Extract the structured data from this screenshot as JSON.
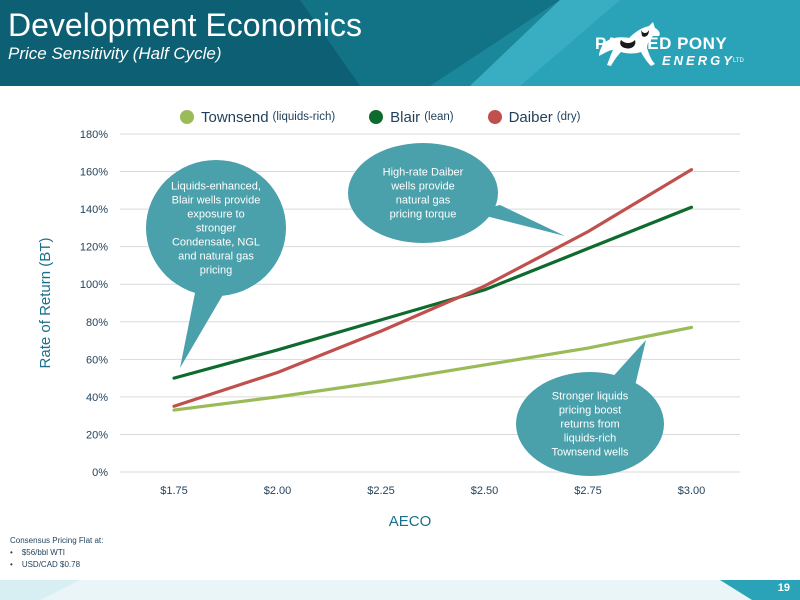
{
  "header": {
    "title": "Development Economics",
    "subtitle": "Price Sensitivity (Half Cycle)"
  },
  "logo": {
    "line1": "PAINTED PONY",
    "line2": "ENERGY",
    "suffix": "LTD",
    "icon": "horse-icon"
  },
  "colors": {
    "header_teal": "#2aa3b9",
    "header_dark": "#0d5f73",
    "callout": "#4aa0ab",
    "axis_text": "#1f3f5a"
  },
  "chart_data": {
    "type": "line",
    "x": [
      "$1.75",
      "$2.00",
      "$2.25",
      "$2.50",
      "$2.75",
      "$3.00"
    ],
    "xlabel": "AECO",
    "ylabel": "Rate of Return (BT)",
    "ylim": [
      0,
      180
    ],
    "yticks": [
      "0%",
      "20%",
      "40%",
      "60%",
      "80%",
      "100%",
      "120%",
      "140%",
      "160%",
      "180%"
    ],
    "grid": true,
    "legend_position": "top",
    "series": [
      {
        "name": "Townsend",
        "qualifier": "(liquids-rich)",
        "color": "#9bbb59",
        "values": [
          33,
          40,
          48,
          57,
          66,
          77
        ]
      },
      {
        "name": "Blair",
        "qualifier": "(lean)",
        "color": "#0e6b2e",
        "values": [
          50,
          65,
          81,
          97,
          119,
          141
        ]
      },
      {
        "name": "Daiber",
        "qualifier": "(dry)",
        "color": "#c0504d",
        "values": [
          35,
          53,
          75,
          99,
          128,
          161
        ]
      }
    ],
    "annotations": [
      "Liquids-enhanced, Blair wells provide exposure to stronger Condensate, NGL and natural gas pricing",
      "High-rate Daiber wells provide natural gas pricing torque",
      "Stronger liquids pricing boost returns from liquids-rich Townsend wells"
    ]
  },
  "footnote": {
    "heading": "Consensus Pricing Flat at:",
    "items": [
      "$56/bbl WTI",
      "USD/CAD $0.78"
    ]
  },
  "page_number": "19"
}
